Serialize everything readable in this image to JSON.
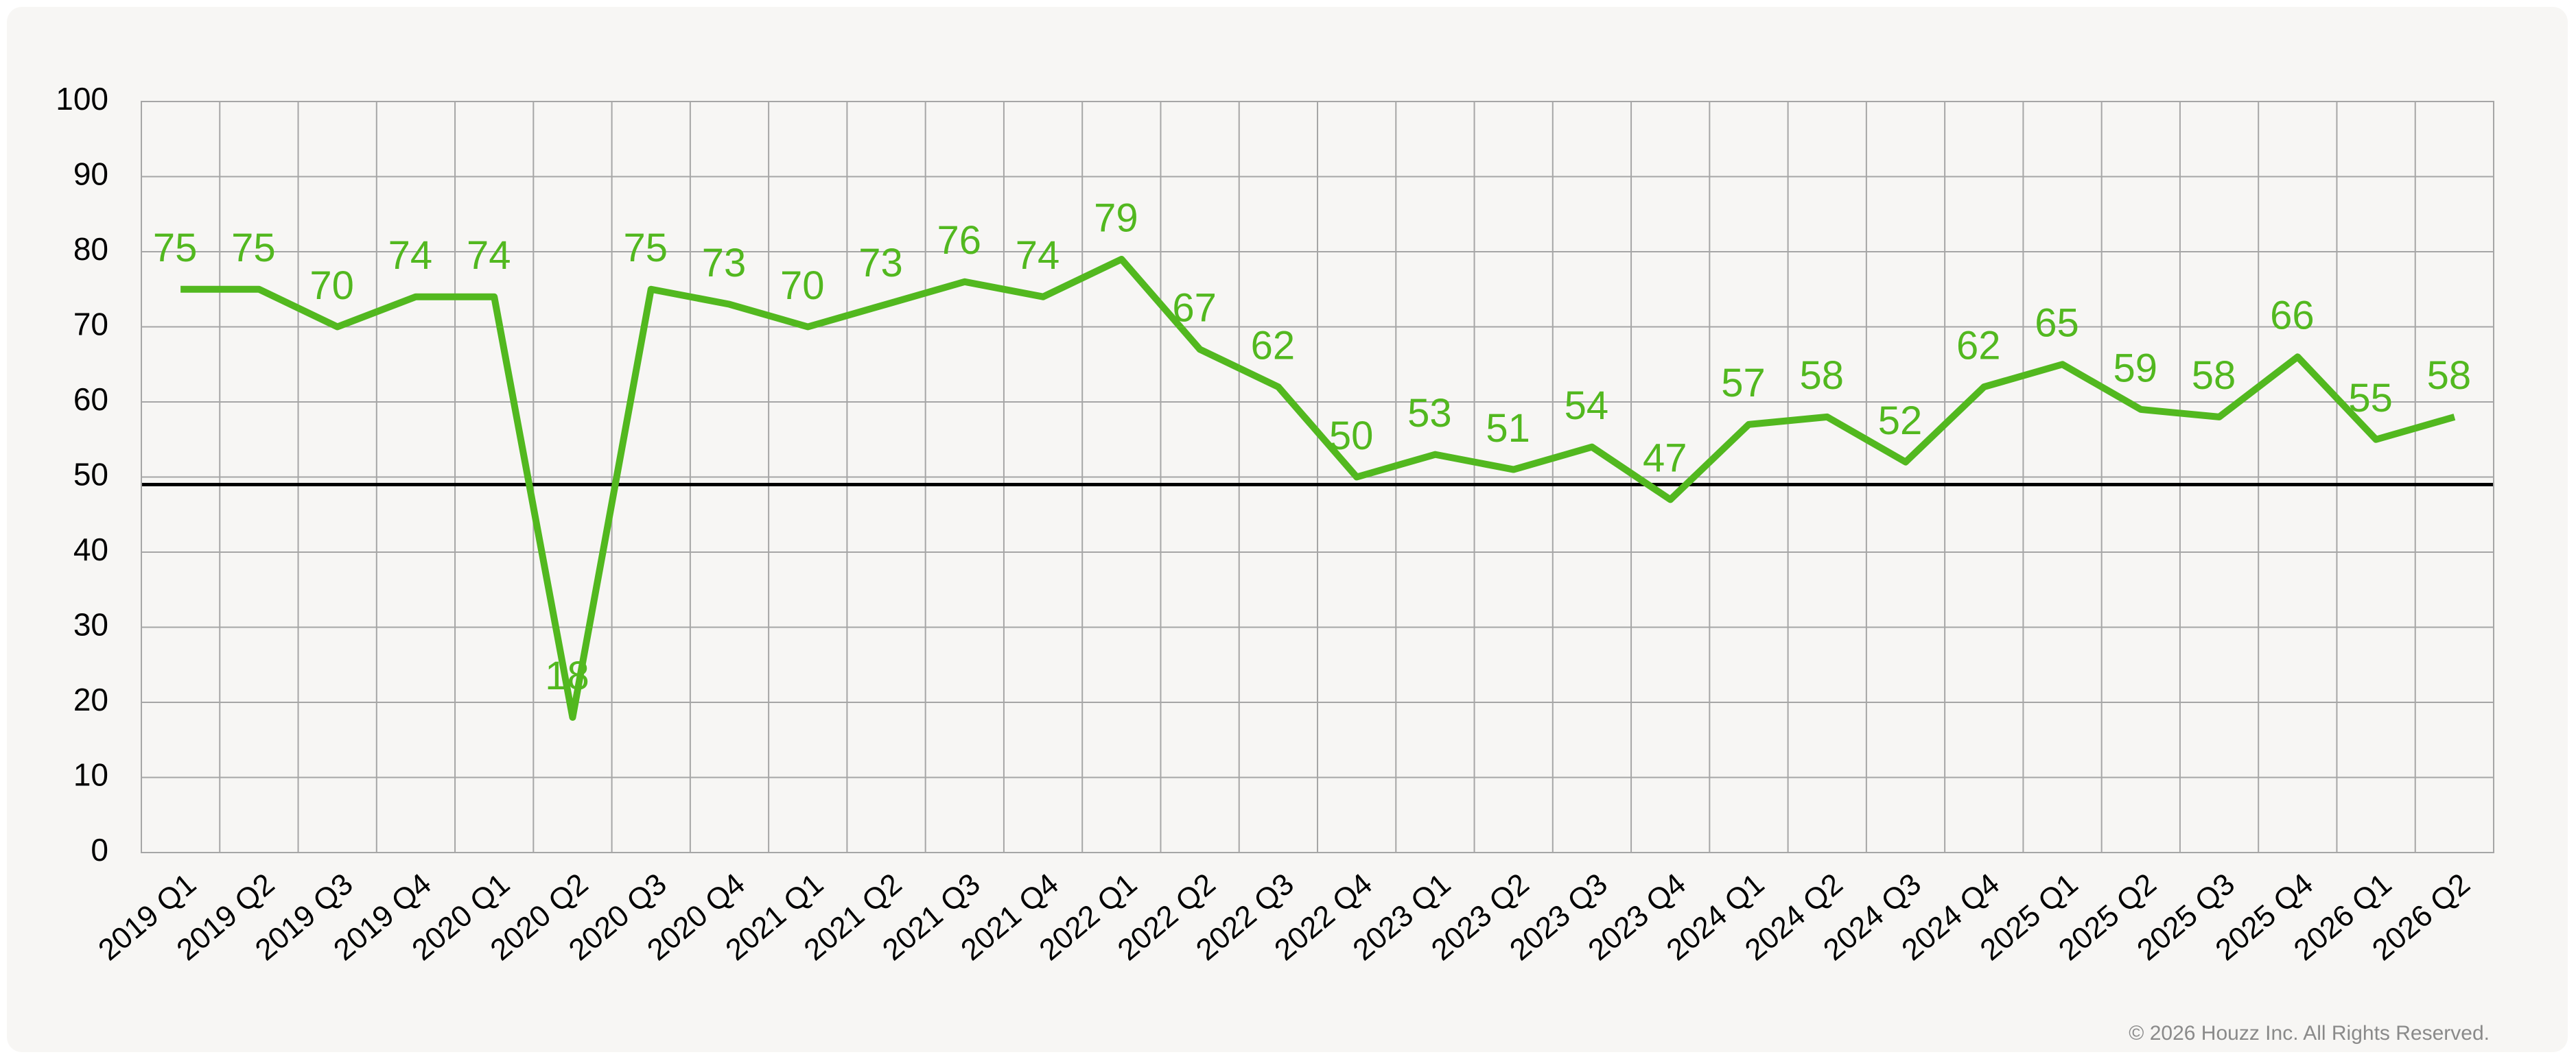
{
  "chart_data": {
    "type": "line",
    "categories": [
      "2019 Q1",
      "2019 Q2",
      "2019 Q3",
      "2019 Q4",
      "2020 Q1",
      "2020 Q2",
      "2020 Q3",
      "2020 Q4",
      "2021 Q1",
      "2021 Q2",
      "2021 Q3",
      "2021 Q4",
      "2022 Q1",
      "2022 Q2",
      "2022 Q3",
      "2022 Q4",
      "2023 Q1",
      "2023 Q2",
      "2023 Q3",
      "2023 Q4",
      "2024 Q1",
      "2024 Q2",
      "2024 Q3",
      "2024 Q4",
      "2025 Q1",
      "2025 Q2",
      "2025 Q3",
      "2025 Q4",
      "2026 Q1",
      "2026 Q2"
    ],
    "series": [
      {
        "color": "#52b81f",
        "values": [
          75,
          75,
          70,
          74,
          74,
          18,
          75,
          73,
          70,
          73,
          76,
          74,
          79,
          67,
          62,
          50,
          53,
          51,
          54,
          47,
          57,
          58,
          52,
          62,
          65,
          59,
          58,
          66,
          55,
          58
        ]
      }
    ],
    "ylim": [
      0,
      100
    ],
    "yticks": [
      0,
      10,
      20,
      30,
      40,
      50,
      60,
      70,
      80,
      90,
      100
    ],
    "grid": true,
    "reference_line": {
      "value": 49,
      "color": "#000000"
    },
    "footer": "© 2026 Houzz Inc. All Rights Reserved."
  }
}
